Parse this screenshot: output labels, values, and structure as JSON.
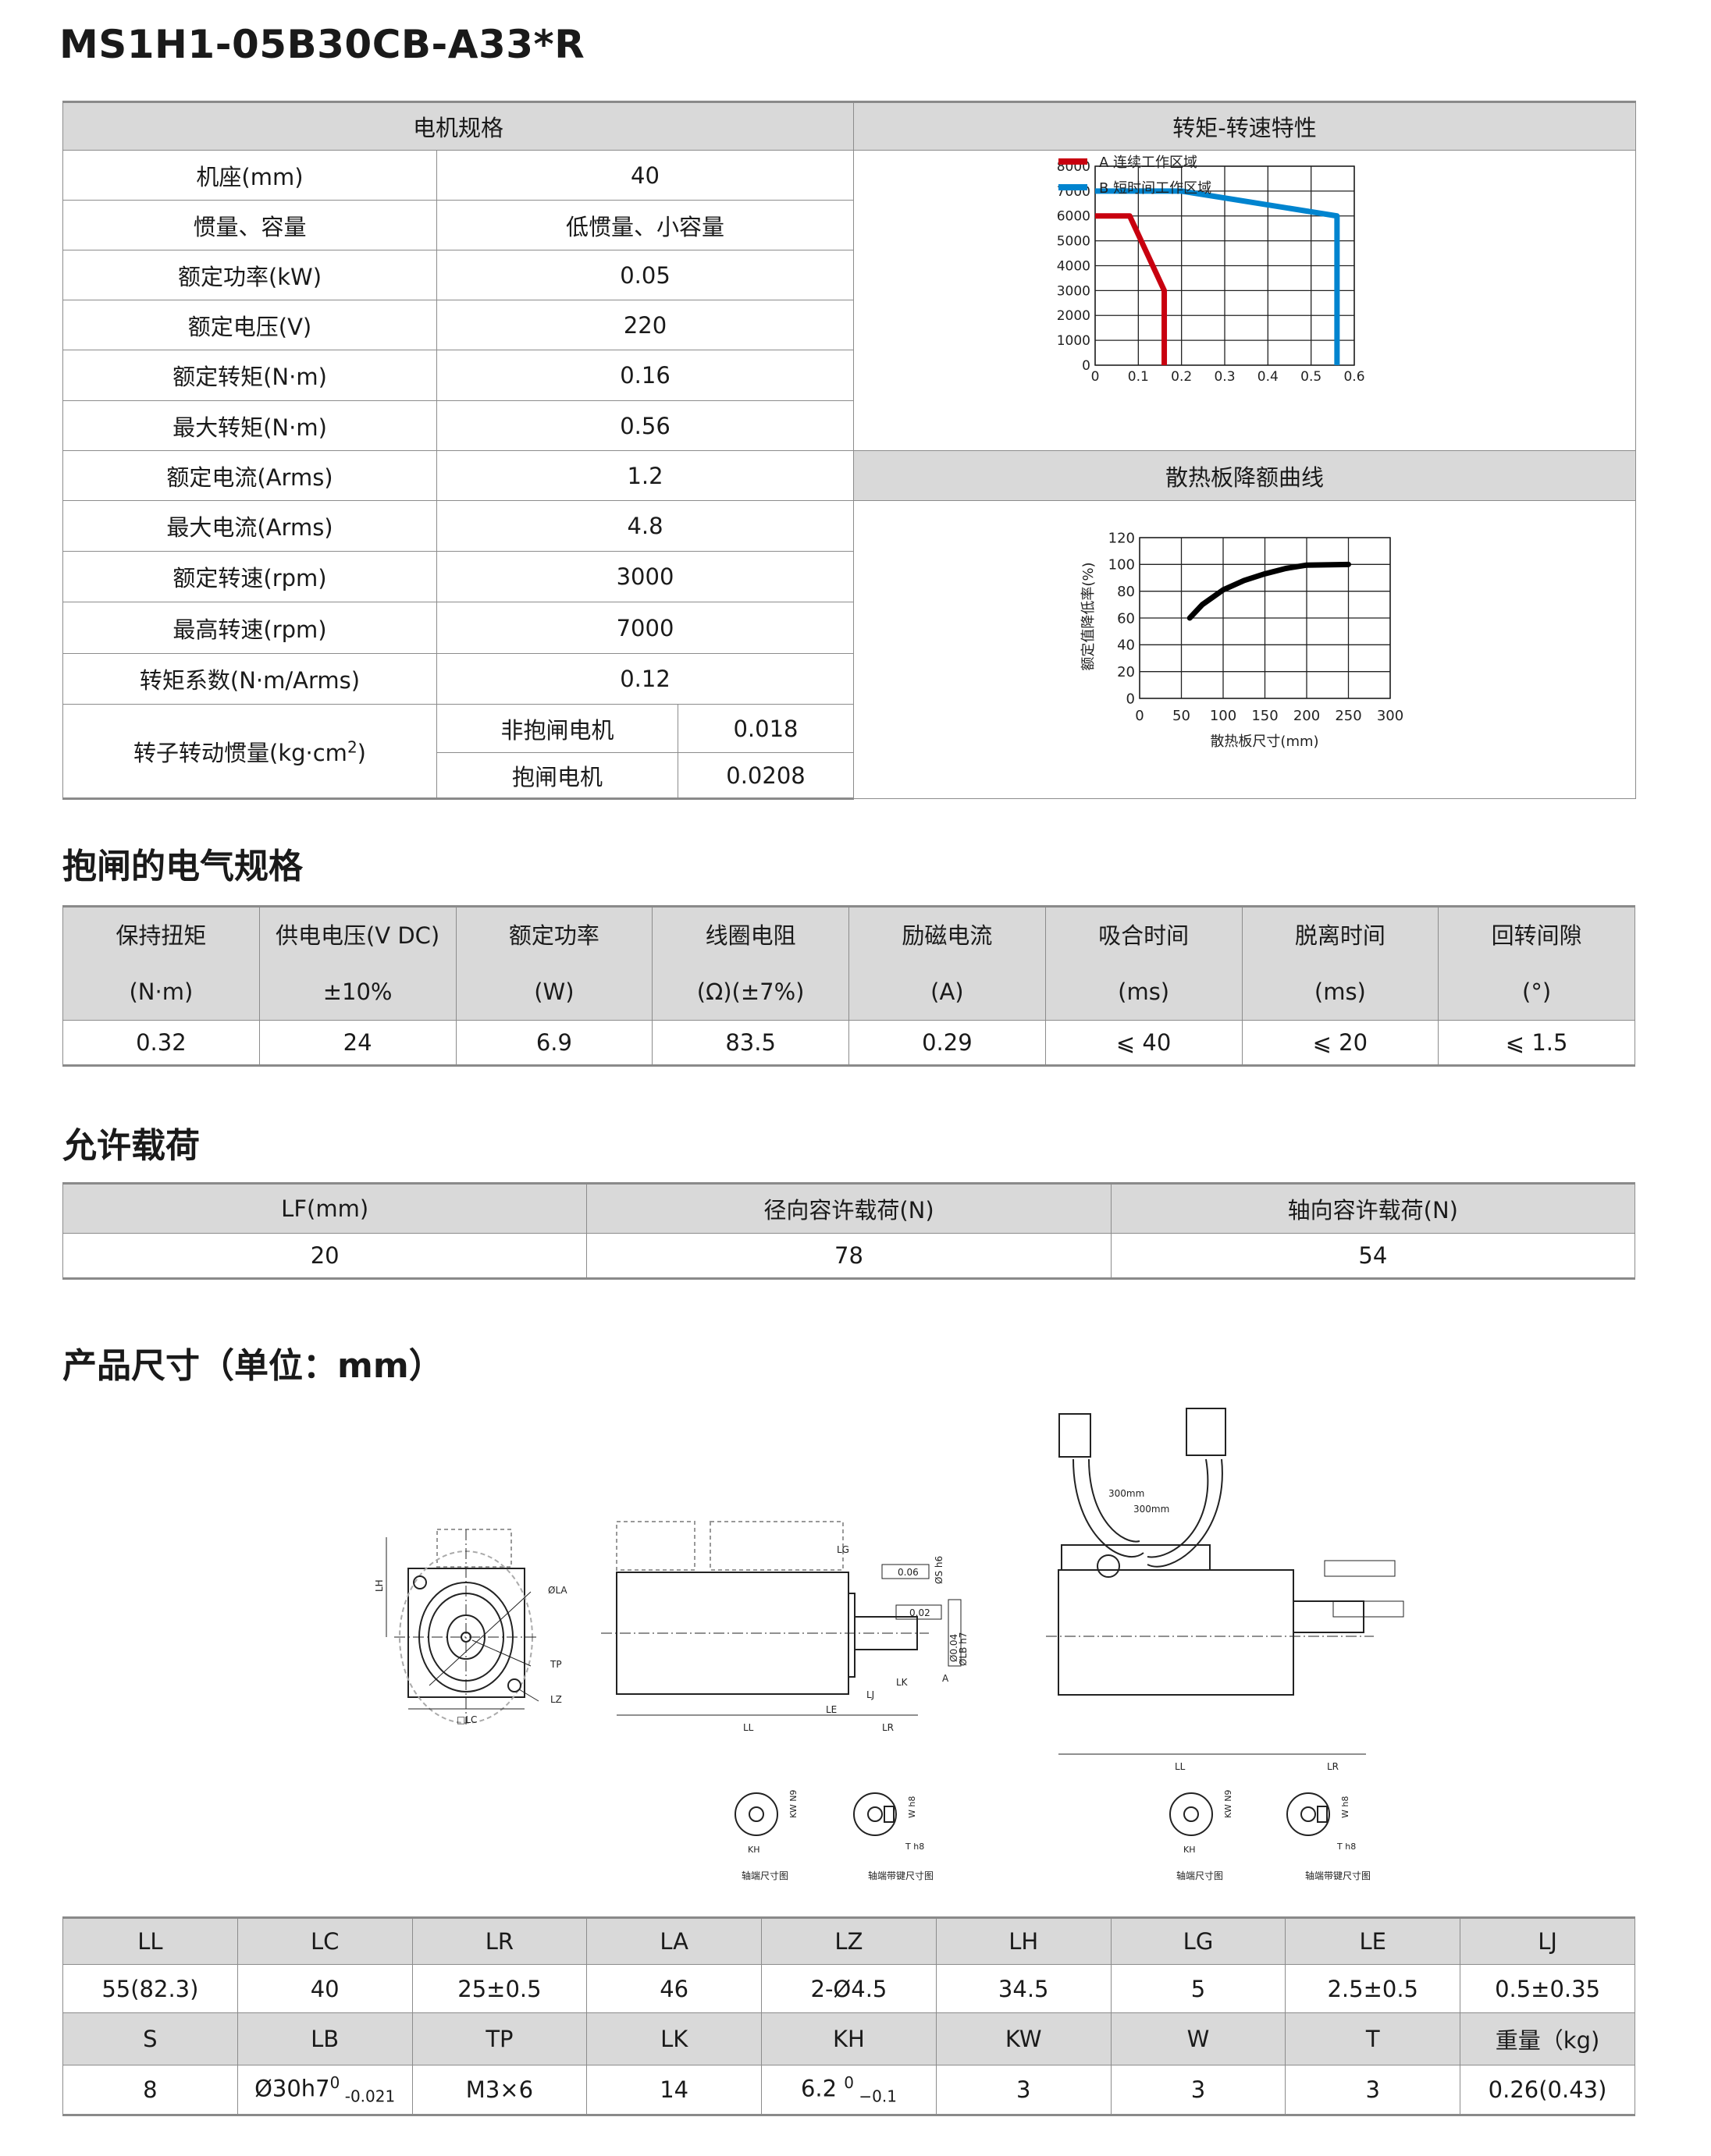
{
  "title": "MS1H1-05B30CB-A33*R",
  "spec": {
    "header": "电机规格",
    "rows": [
      {
        "label": "机座(mm)",
        "value": "40"
      },
      {
        "label": "惯量、容量",
        "value": "低惯量、小容量"
      },
      {
        "label": "额定功率(kW)",
        "value": "0.05"
      },
      {
        "label": "额定电压(V)",
        "value": "220"
      },
      {
        "label": "额定转矩(N·m)",
        "value": "0.16"
      },
      {
        "label": "最大转矩(N·m)",
        "value": "0.56"
      },
      {
        "label": "额定电流(Arms)",
        "value": "1.2"
      },
      {
        "label": "最大电流(Arms)",
        "value": "4.8"
      },
      {
        "label": "额定转速(rpm)",
        "value": "3000"
      },
      {
        "label": "最高转速(rpm)",
        "value": "7000"
      },
      {
        "label": "转矩系数(N·m/Arms)",
        "value": "0.12"
      }
    ],
    "inertia": {
      "label_main": "转子转动惯量(kg·cm",
      "label_sup": "2",
      "label_end": ")",
      "sub": [
        {
          "label": "非抱闸电机",
          "value": "0.018"
        },
        {
          "label": "抱闸电机",
          "value": "0.0208"
        }
      ]
    }
  },
  "chart_data": [
    {
      "type": "line",
      "title": "转矩-转速特性",
      "xlim": [
        0,
        0.6
      ],
      "ylim": [
        0,
        8000
      ],
      "xticks": [
        "0",
        "0.1",
        "0.2",
        "0.3",
        "0.4",
        "0.5",
        "0.6"
      ],
      "yticks": [
        "0",
        "1000",
        "2000",
        "3000",
        "4000",
        "5000",
        "6000",
        "7000",
        "8000"
      ],
      "grid": true,
      "legend_position": "top-left",
      "series": [
        {
          "name": "A 连续工作区域",
          "color": "#c8000f",
          "x": [
            0,
            0.08,
            0.16,
            0.16
          ],
          "y": [
            6000,
            6000,
            3000,
            0
          ]
        },
        {
          "name": "B 短时间工作区域",
          "color": "#0084cf",
          "x": [
            0,
            0.2,
            0.56,
            0.56
          ],
          "y": [
            7000,
            7000,
            6000,
            0
          ]
        }
      ]
    },
    {
      "type": "line",
      "title": "散热板降额曲线",
      "xlabel": "散热板尺寸(mm)",
      "ylabel": "额定值降低率(%)",
      "xlim": [
        0,
        300
      ],
      "ylim": [
        0,
        120
      ],
      "xticks": [
        "0",
        "50",
        "100",
        "150",
        "200",
        "250",
        "300"
      ],
      "yticks": [
        "0",
        "20",
        "40",
        "60",
        "80",
        "100",
        "120"
      ],
      "grid": true,
      "series": [
        {
          "color": "#000000",
          "x": [
            60,
            75,
            100,
            125,
            150,
            175,
            200,
            250
          ],
          "y": [
            60,
            70,
            81,
            88,
            93,
            97,
            99.5,
            100
          ]
        }
      ]
    }
  ],
  "brake": {
    "heading": "抱闸的电气规格",
    "headers": [
      [
        "保持扭矩",
        "(N·m)"
      ],
      [
        "供电电压(V DC)",
        "±10%"
      ],
      [
        "额定功率",
        "(W)"
      ],
      [
        "线圈电阻",
        "(Ω)(±7%)"
      ],
      [
        "励磁电流",
        "(A)"
      ],
      [
        "吸合时间",
        "(ms)"
      ],
      [
        "脱离时间",
        "(ms)"
      ],
      [
        "回转间隙",
        "(°)"
      ]
    ],
    "values": [
      "0.32",
      "24",
      "6.9",
      "83.5",
      "0.29",
      "⩽ 40",
      "⩽ 20",
      "⩽ 1.5"
    ]
  },
  "load": {
    "heading": "允许载荷",
    "headers": [
      "LF(mm)",
      "径向容许载荷(N)",
      "轴向容许载荷(N)"
    ],
    "values": [
      "20",
      "78",
      "54"
    ]
  },
  "dims": {
    "heading": "产品尺寸（单位：mm）",
    "drawing_labels": {
      "la": "ØLA",
      "tp": "TP",
      "lz": "LZ",
      "lh": "LH",
      "lc": "□LC",
      "ll": "LL",
      "le": "LE",
      "lr": "LR",
      "lg": "LG",
      "lj": "LJ",
      "lk": "LK",
      "tol1": "0.06",
      "tol2": "0.02",
      "tol3": "Ø0.04",
      "datum": "A",
      "s": "ØS h6",
      "lb": "ØLB h7",
      "cable1": "300mm",
      "cable2": "300mm",
      "kw": "KW N9",
      "w": "W h8",
      "kh": "KH",
      "t": "T h8",
      "cap1": "轴端尺寸图",
      "cap2": "轴端带键尺寸图"
    },
    "row1_headers": [
      "LL",
      "LC",
      "LR",
      "LA",
      "LZ",
      "LH",
      "LG",
      "LE",
      "LJ"
    ],
    "row1_values": [
      "55(82.3)",
      "40",
      "25±0.5",
      "46",
      "2-Ø4.5",
      "34.5",
      "5",
      "2.5±0.5",
      "0.5±0.35"
    ],
    "row2_headers": [
      "S",
      "LB",
      "TP",
      "LK",
      "KH",
      "KW",
      "W",
      "T",
      "重量（kg)"
    ],
    "row2_values": [
      {
        "main": "8"
      },
      {
        "main": "Ø30h7",
        "sup": "0",
        "sub": " -0.021"
      },
      {
        "main": "M3×6"
      },
      {
        "main": "14"
      },
      {
        "main": "6.2 ",
        "sup": "0",
        "sub": " −0.1"
      },
      {
        "main": "3"
      },
      {
        "main": "3"
      },
      {
        "main": "3"
      },
      {
        "main": "0.26(0.43)"
      }
    ]
  }
}
